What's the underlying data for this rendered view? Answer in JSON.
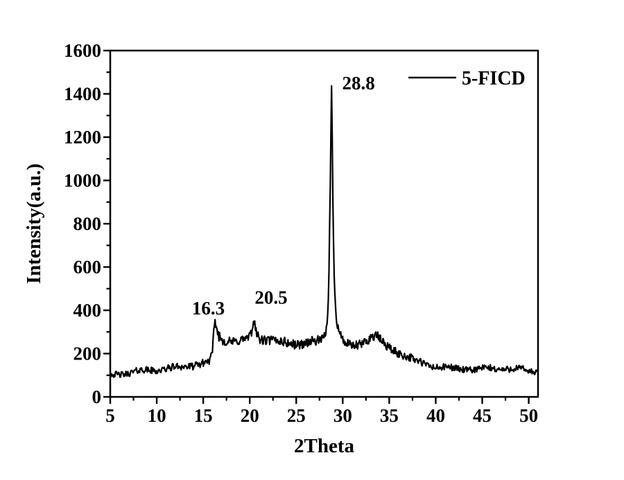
{
  "figure": {
    "background": "#ffffff",
    "axis_color": "#000000"
  },
  "chart_data": {
    "type": "line",
    "title": "",
    "xlabel": "2Theta",
    "ylabel": "Intensity(a.u.)",
    "xlim": [
      5,
      51
    ],
    "ylim": [
      0,
      1600
    ],
    "grid": false,
    "x_major_ticks": [
      5,
      10,
      15,
      20,
      25,
      30,
      35,
      40,
      45,
      50
    ],
    "x_minor_ticks": [
      7.5,
      12.5,
      17.5,
      22.5,
      27.5,
      32.5,
      37.5,
      42.5,
      47.5
    ],
    "y_major_ticks": [
      0,
      200,
      400,
      600,
      800,
      1000,
      1200,
      1400,
      1600
    ],
    "y_minor_ticks": [
      100,
      300,
      500,
      700,
      900,
      1100,
      1300,
      1500
    ],
    "legend": {
      "position": "top-right",
      "entries": [
        {
          "label": "5-FICD",
          "color": "#000000"
        }
      ]
    },
    "annotations": [
      {
        "label": "16.3",
        "theta": 15.55,
        "intensity": 410
      },
      {
        "label": "20.5",
        "theta": 22.3,
        "intensity": 460
      },
      {
        "label": "28.8",
        "theta": 31.7,
        "intensity": 1450
      }
    ],
    "peaks": [
      16.3,
      20.5,
      28.8
    ],
    "series": [
      {
        "name": "5-FICD",
        "color": "#000000",
        "line_width": 2.2,
        "noise_seed": 42,
        "noise_scale": 1.4,
        "noise_cap": 300,
        "sample_step": 0.07,
        "profile": [
          [
            5,
            100
          ],
          [
            6,
            107
          ],
          [
            7,
            112
          ],
          [
            8,
            117
          ],
          [
            9,
            122
          ],
          [
            10,
            126
          ],
          [
            11,
            130
          ],
          [
            12,
            134
          ],
          [
            13,
            140
          ],
          [
            14,
            148
          ],
          [
            15,
            155
          ],
          [
            15.7,
            162
          ],
          [
            16.0,
            200
          ],
          [
            16.15,
            300
          ],
          [
            16.3,
            350
          ],
          [
            16.45,
            310
          ],
          [
            16.7,
            280
          ],
          [
            17,
            268
          ],
          [
            17.5,
            262
          ],
          [
            18,
            258
          ],
          [
            18.5,
            255
          ],
          [
            19,
            258
          ],
          [
            19.5,
            262
          ],
          [
            20,
            272
          ],
          [
            20.3,
            310
          ],
          [
            20.5,
            370
          ],
          [
            20.7,
            300
          ],
          [
            21,
            272
          ],
          [
            21.5,
            265
          ],
          [
            22,
            262
          ],
          [
            22.5,
            258
          ],
          [
            23,
            255
          ],
          [
            23.5,
            252
          ],
          [
            24,
            250
          ],
          [
            24.5,
            248
          ],
          [
            25,
            247
          ],
          [
            25.5,
            246
          ],
          [
            26,
            248
          ],
          [
            26.5,
            250
          ],
          [
            27,
            253
          ],
          [
            27.5,
            258
          ],
          [
            28,
            270
          ],
          [
            28.3,
            330
          ],
          [
            28.5,
            520
          ],
          [
            28.65,
            950
          ],
          [
            28.8,
            1445
          ],
          [
            28.95,
            900
          ],
          [
            29.1,
            520
          ],
          [
            29.3,
            380
          ],
          [
            29.5,
            320
          ],
          [
            29.8,
            280
          ],
          [
            30,
            258
          ],
          [
            30.5,
            238
          ],
          [
            31,
            230
          ],
          [
            31.5,
            238
          ],
          [
            32,
            248
          ],
          [
            32.5,
            262
          ],
          [
            33,
            276
          ],
          [
            33.3,
            282
          ],
          [
            33.6,
            280
          ],
          [
            34,
            262
          ],
          [
            34.5,
            240
          ],
          [
            35,
            226
          ],
          [
            35.5,
            215
          ],
          [
            36,
            206
          ],
          [
            36.5,
            196
          ],
          [
            37,
            186
          ],
          [
            37.5,
            172
          ],
          [
            38,
            162
          ],
          [
            38.5,
            155
          ],
          [
            39,
            150
          ],
          [
            39.5,
            145
          ],
          [
            40,
            140
          ],
          [
            41,
            134
          ],
          [
            42,
            130
          ],
          [
            43,
            129
          ],
          [
            44,
            128
          ],
          [
            45,
            128
          ],
          [
            46,
            130
          ],
          [
            47,
            132
          ],
          [
            48,
            130
          ],
          [
            49,
            126
          ],
          [
            50,
            121
          ],
          [
            50.97,
            116
          ]
        ]
      }
    ]
  }
}
